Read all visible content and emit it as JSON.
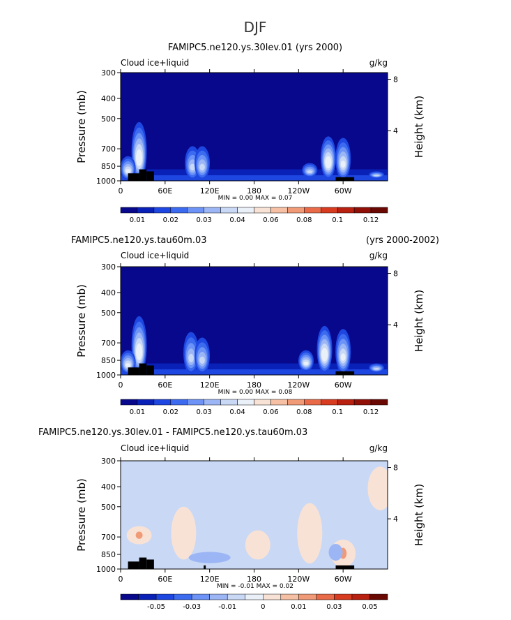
{
  "main_title": "DJF",
  "chart_data": [
    {
      "type": "heatmap",
      "panel": "top",
      "title_left": "",
      "title_center": "FAMIPC5.ne120.ys.30lev.01 (yrs 2000)",
      "title_right": "",
      "variable_label": "Cloud ice+liquid",
      "units_label": "g/kg",
      "ylabel": "Pressure (mb)",
      "ylabel_right": "Height (km)",
      "y_ticks": [
        "300",
        "400",
        "500",
        "700",
        "850",
        "1000"
      ],
      "y_tick_values": [
        300,
        400,
        500,
        700,
        850,
        1000
      ],
      "ylim": [
        300,
        1000
      ],
      "y_right_ticks": [
        "8",
        "4"
      ],
      "y_right_tick_values_km": [
        8,
        4
      ],
      "x_ticks": [
        "0",
        "60E",
        "120E",
        "180",
        "120W",
        "60W"
      ],
      "x_tick_values": [
        0,
        60,
        120,
        180,
        240,
        300
      ],
      "xlim": [
        0,
        360
      ],
      "min_max_text": "MIN =    0.00   MAX =    0.07",
      "min": 0.0,
      "max": 0.07,
      "colorbar_labels": [
        "0.01",
        "0.02",
        "0.03",
        "0.04",
        "0.06",
        "0.08",
        "0.1",
        "0.12"
      ],
      "colorbar_colors": [
        "#08088C",
        "#0A21B8",
        "#1E46E0",
        "#3C6BF0",
        "#6C93F5",
        "#9CB6F5",
        "#C8D8F5",
        "#EAF0F8",
        "#F8E2D6",
        "#F5C0A4",
        "#F09A78",
        "#E86A48",
        "#D83C20",
        "#B82010",
        "#901008",
        "#6A0804"
      ],
      "features": [
        {
          "lon": 25,
          "p_top": 520,
          "p_bot": 1000,
          "intensity": 0.9
        },
        {
          "lon": 10,
          "p_top": 760,
          "p_bot": 990,
          "intensity": 0.7
        },
        {
          "lon": 97,
          "p_top": 680,
          "p_bot": 990,
          "intensity": 0.5
        },
        {
          "lon": 110,
          "p_top": 680,
          "p_bot": 990,
          "intensity": 0.45
        },
        {
          "lon": 280,
          "p_top": 610,
          "p_bot": 980,
          "intensity": 0.9
        },
        {
          "lon": 300,
          "p_top": 620,
          "p_bot": 990,
          "intensity": 0.8
        },
        {
          "lon": 255,
          "p_top": 820,
          "p_bot": 960,
          "intensity": 0.55
        },
        {
          "lon": 345,
          "p_top": 900,
          "p_bot": 970,
          "intensity": 0.5
        }
      ]
    },
    {
      "type": "heatmap",
      "panel": "middle",
      "title_left": "FAMIPC5.ne120.ys.tau60m.03",
      "title_center": "",
      "title_right": "(yrs 2000-2002)",
      "variable_label": "Cloud ice+liquid",
      "units_label": "g/kg",
      "ylabel": "Pressure (mb)",
      "ylabel_right": "Height (km)",
      "y_ticks": [
        "300",
        "400",
        "500",
        "700",
        "850",
        "1000"
      ],
      "y_tick_values": [
        300,
        400,
        500,
        700,
        850,
        1000
      ],
      "ylim": [
        300,
        1000
      ],
      "y_right_ticks": [
        "8",
        "4"
      ],
      "y_right_tick_values_km": [
        8,
        4
      ],
      "x_ticks": [
        "0",
        "60E",
        "120E",
        "180",
        "120W",
        "60W"
      ],
      "x_tick_values": [
        0,
        60,
        120,
        180,
        240,
        300
      ],
      "xlim": [
        0,
        360
      ],
      "min_max_text": "MIN =    0.00   MAX =    0.08",
      "min": 0.0,
      "max": 0.08,
      "colorbar_labels": [
        "0.01",
        "0.02",
        "0.03",
        "0.04",
        "0.06",
        "0.08",
        "0.1",
        "0.12"
      ],
      "colorbar_colors": [
        "#08088C",
        "#0A21B8",
        "#1E46E0",
        "#3C6BF0",
        "#6C93F5",
        "#9CB6F5",
        "#C8D8F5",
        "#EAF0F8",
        "#F8E2D6",
        "#F5C0A4",
        "#F09A78",
        "#E86A48",
        "#D83C20",
        "#B82010",
        "#901008",
        "#6A0804"
      ],
      "features": [
        {
          "lon": 25,
          "p_top": 520,
          "p_bot": 1000,
          "intensity": 0.9
        },
        {
          "lon": 10,
          "p_top": 760,
          "p_bot": 990,
          "intensity": 0.75
        },
        {
          "lon": 95,
          "p_top": 620,
          "p_bot": 990,
          "intensity": 0.55
        },
        {
          "lon": 110,
          "p_top": 660,
          "p_bot": 990,
          "intensity": 0.45
        },
        {
          "lon": 275,
          "p_top": 580,
          "p_bot": 980,
          "intensity": 0.95
        },
        {
          "lon": 300,
          "p_top": 600,
          "p_bot": 990,
          "intensity": 0.8
        },
        {
          "lon": 250,
          "p_top": 760,
          "p_bot": 960,
          "intensity": 0.7
        },
        {
          "lon": 345,
          "p_top": 880,
          "p_bot": 970,
          "intensity": 0.5
        }
      ]
    },
    {
      "type": "heatmap",
      "panel": "bottom",
      "title_left": "FAMIPC5.ne120.ys.30lev.01 - FAMIPC5.ne120.ys.tau60m.03",
      "title_center": "",
      "title_right": "",
      "variable_label": "Cloud ice+liquid",
      "units_label": "g/kg",
      "ylabel": "Pressure (mb)",
      "ylabel_right": "Height (km)",
      "y_ticks": [
        "300",
        "400",
        "500",
        "700",
        "850",
        "1000"
      ],
      "y_tick_values": [
        300,
        400,
        500,
        700,
        850,
        1000
      ],
      "ylim": [
        300,
        1000
      ],
      "y_right_ticks": [
        "8",
        "4"
      ],
      "y_right_tick_values_km": [
        8,
        4
      ],
      "x_ticks": [
        "0",
        "60E",
        "120E",
        "180",
        "120W",
        "60W"
      ],
      "x_tick_values": [
        0,
        60,
        120,
        180,
        240,
        300
      ],
      "xlim": [
        0,
        360
      ],
      "min_max_text": "MIN =   -0.01   MAX =    0.02",
      "min": -0.01,
      "max": 0.02,
      "colorbar_labels": [
        "-0.05",
        "-0.03",
        "-0.01",
        "0",
        "0.01",
        "0.03",
        "0.05"
      ],
      "colorbar_colors": [
        "#08088C",
        "#0A21B8",
        "#1E46E0",
        "#3C6BF0",
        "#6C93F5",
        "#9CB6F5",
        "#C8D8F5",
        "#EAF0F8",
        "#F8E2D6",
        "#F5C0A4",
        "#F09A78",
        "#E86A48",
        "#D83C20",
        "#B82010",
        "#6A0804"
      ],
      "features": [
        {
          "lon": 25,
          "p_top": 620,
          "p_bot": 760,
          "intensity": 0.6
        },
        {
          "lon": 85,
          "p_top": 500,
          "p_bot": 900,
          "intensity": 0.35
        },
        {
          "lon": 185,
          "p_top": 650,
          "p_bot": 900,
          "intensity": 0.3
        },
        {
          "lon": 255,
          "p_top": 480,
          "p_bot": 940,
          "intensity": 0.35
        },
        {
          "lon": 300,
          "p_top": 720,
          "p_bot": 980,
          "intensity": 0.5
        },
        {
          "lon": 350,
          "p_top": 320,
          "p_bot": 520,
          "intensity": 0.3
        }
      ]
    }
  ]
}
